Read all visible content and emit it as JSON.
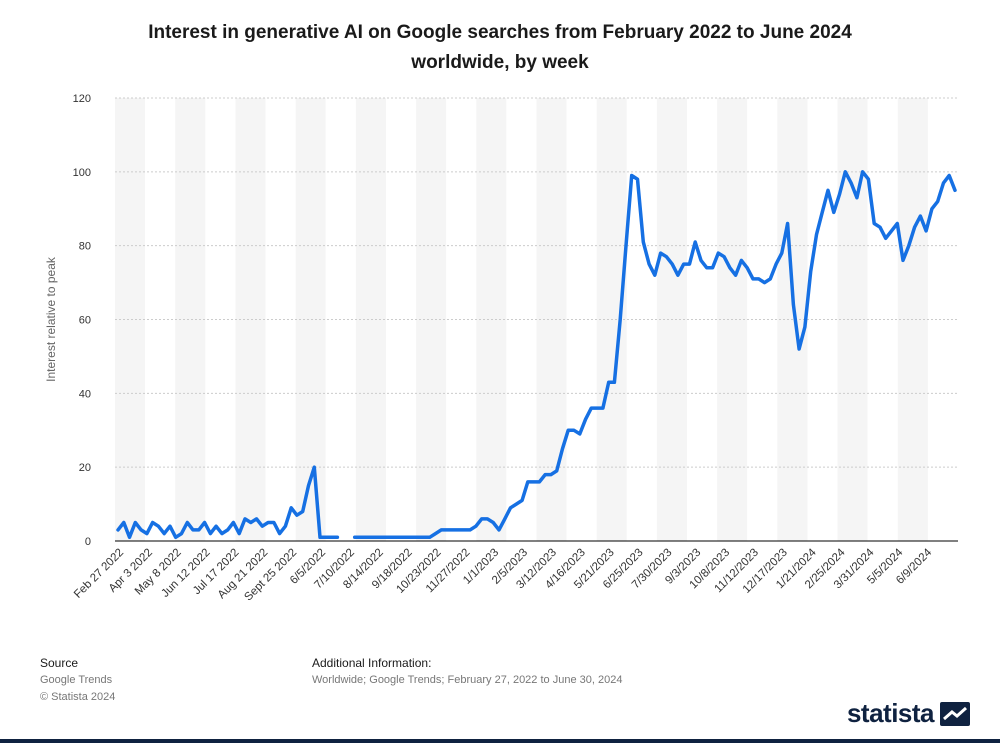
{
  "title_line1": "Interest in generative AI on Google searches from February 2022 to June 2024",
  "title_line2": "worldwide, by week",
  "colors": {
    "line": "#1670e3",
    "band": "#f5f5f5",
    "grid": "#cccccc",
    "axis": "#000000",
    "tick_text": "#333333",
    "brand": "#0f2240"
  },
  "chart_data": {
    "type": "line",
    "title": "Interest in generative AI on Google searches from February 2022 to June 2024 worldwide, by week",
    "xlabel": "",
    "ylabel": "Interest relative to peak",
    "ylim": [
      0,
      120
    ],
    "yticks": [
      0,
      20,
      40,
      60,
      80,
      100,
      120
    ],
    "tick_labels": [
      "Feb 27 2022",
      "Apr 3 2022",
      "May 8 2022",
      "Jun 12 2022",
      "Jul 17 2022",
      "Aug 21 2022",
      "Sept 25 2022",
      "6/5/2022",
      "7/10/2022",
      "8/14/2022",
      "9/18/2022",
      "10/23/2022",
      "11/27/2022",
      "1/1/2023",
      "2/5/2023",
      "3/12/2023",
      "4/16/2023",
      "5/21/2023",
      "6/25/2023",
      "7/30/2023",
      "9/3/2023",
      "10/8/2023",
      "11/12/2023",
      "12/17/2023",
      "1/21/2024",
      "2/25/2024",
      "3/31/2024",
      "5/5/2024",
      "6/9/2024"
    ],
    "tick_index": [
      0,
      5,
      10,
      15,
      20,
      25,
      30,
      35,
      40,
      45,
      50,
      55,
      60,
      65,
      70,
      75,
      80,
      85,
      90,
      95,
      100,
      105,
      110,
      115,
      120,
      125,
      130,
      135,
      140
    ],
    "series": [
      {
        "name": "Interest",
        "values": [
          3,
          5,
          1,
          5,
          3,
          2,
          5,
          4,
          2,
          4,
          1,
          2,
          5,
          3,
          3,
          5,
          2,
          4,
          2,
          3,
          5,
          2,
          6,
          5,
          6,
          4,
          5,
          5,
          2,
          4,
          9,
          7,
          8,
          15,
          20,
          1,
          1,
          1,
          1,
          null,
          null,
          1,
          1,
          1,
          1,
          1,
          1,
          1,
          1,
          1,
          1,
          1,
          1,
          1,
          1,
          2,
          3,
          3,
          3,
          3,
          3,
          3,
          4,
          6,
          6,
          5,
          3,
          6,
          9,
          10,
          11,
          16,
          16,
          16,
          18,
          18,
          19,
          25,
          30,
          30,
          29,
          33,
          36,
          36,
          36,
          43,
          43,
          60,
          80,
          99,
          98,
          81,
          75,
          72,
          78,
          77,
          75,
          72,
          75,
          75,
          81,
          76,
          74,
          74,
          78,
          77,
          74,
          72,
          76,
          74,
          71,
          71,
          70,
          71,
          75,
          78,
          86,
          64,
          52,
          58,
          73,
          83,
          89,
          95,
          89,
          94,
          100,
          97,
          93,
          100,
          98,
          86,
          85,
          82,
          84,
          86,
          76,
          80,
          85,
          88,
          84,
          90,
          92,
          97,
          99,
          95
        ]
      }
    ]
  },
  "footer": {
    "source_label": "Source",
    "source_name": "Google Trends",
    "copyright": "© Statista 2024",
    "info_label": "Additional Information:",
    "info_text": "Worldwide; Google Trends; February 27, 2022 to June 30, 2024"
  },
  "brand": {
    "name": "statista",
    "icon": "statista-logo-icon"
  }
}
